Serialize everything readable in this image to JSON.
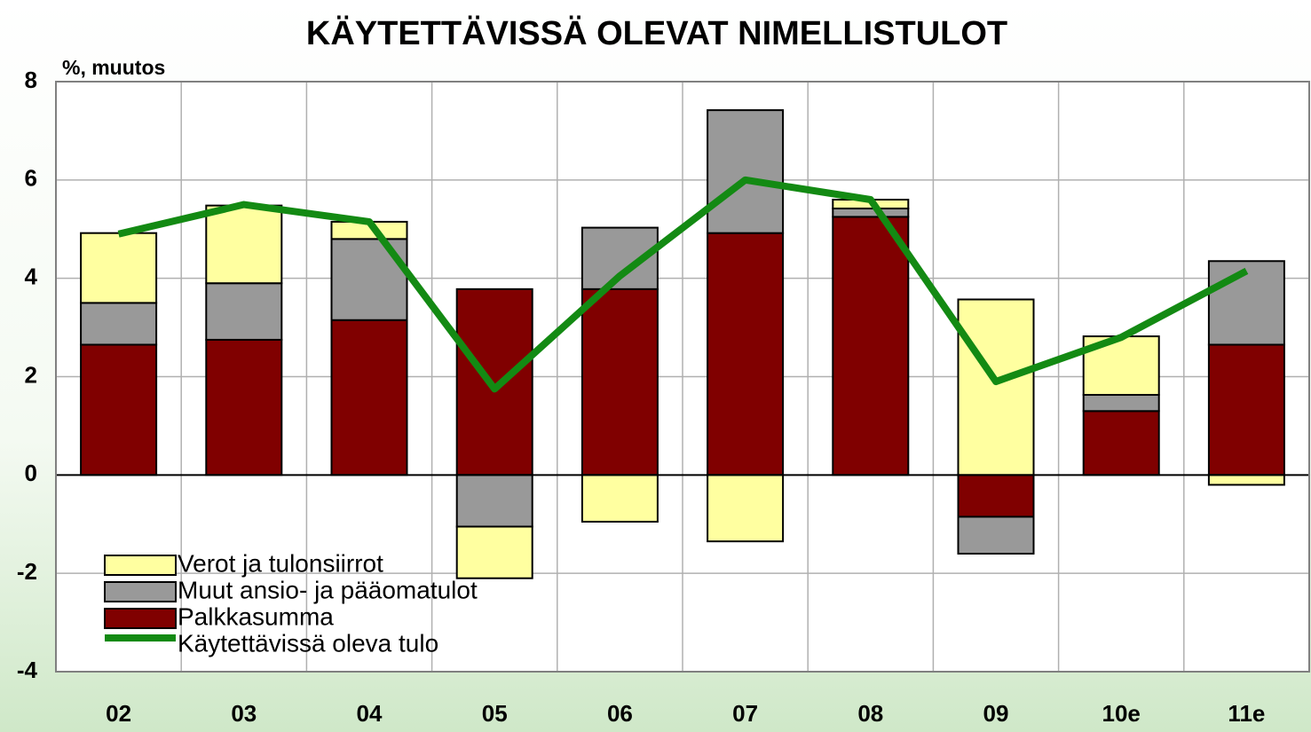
{
  "chart_data": {
    "type": "bar",
    "stacked": true,
    "title": "KÄYTETTÄVISSÄ OLEVAT NIMELLISTULOT",
    "y_label": "%, muutos",
    "categories": [
      "02",
      "03",
      "04",
      "05",
      "06",
      "07",
      "08",
      "09",
      "10e",
      "11e"
    ],
    "series": [
      {
        "name": "Palkkasumma",
        "type": "bar",
        "color": "#800000",
        "values": [
          2.65,
          2.75,
          3.15,
          3.78,
          3.78,
          4.92,
          5.25,
          -0.85,
          1.3,
          2.65
        ]
      },
      {
        "name": "Muut ansio- ja pääomatulot",
        "type": "bar",
        "color": "#999999",
        "values": [
          0.85,
          1.15,
          1.65,
          -1.05,
          1.25,
          2.5,
          0.17,
          -0.75,
          0.33,
          1.7
        ]
      },
      {
        "name": "Verot ja tulonsiirrot",
        "type": "bar",
        "color": "#ffffa0",
        "values": [
          1.42,
          1.58,
          0.35,
          -1.05,
          -0.95,
          -1.35,
          0.18,
          3.57,
          1.19,
          -0.2
        ]
      },
      {
        "name": "Käytettävissä oleva tulo",
        "type": "line",
        "color": "#138a13",
        "values": [
          4.9,
          5.5,
          5.15,
          1.75,
          4.05,
          6.0,
          5.6,
          1.9,
          2.8,
          4.15
        ]
      }
    ],
    "ylim": [
      -4,
      8
    ],
    "yticks": [
      -4,
      -2,
      0,
      2,
      4,
      6,
      8
    ],
    "grid": true,
    "legend": "lower left"
  }
}
